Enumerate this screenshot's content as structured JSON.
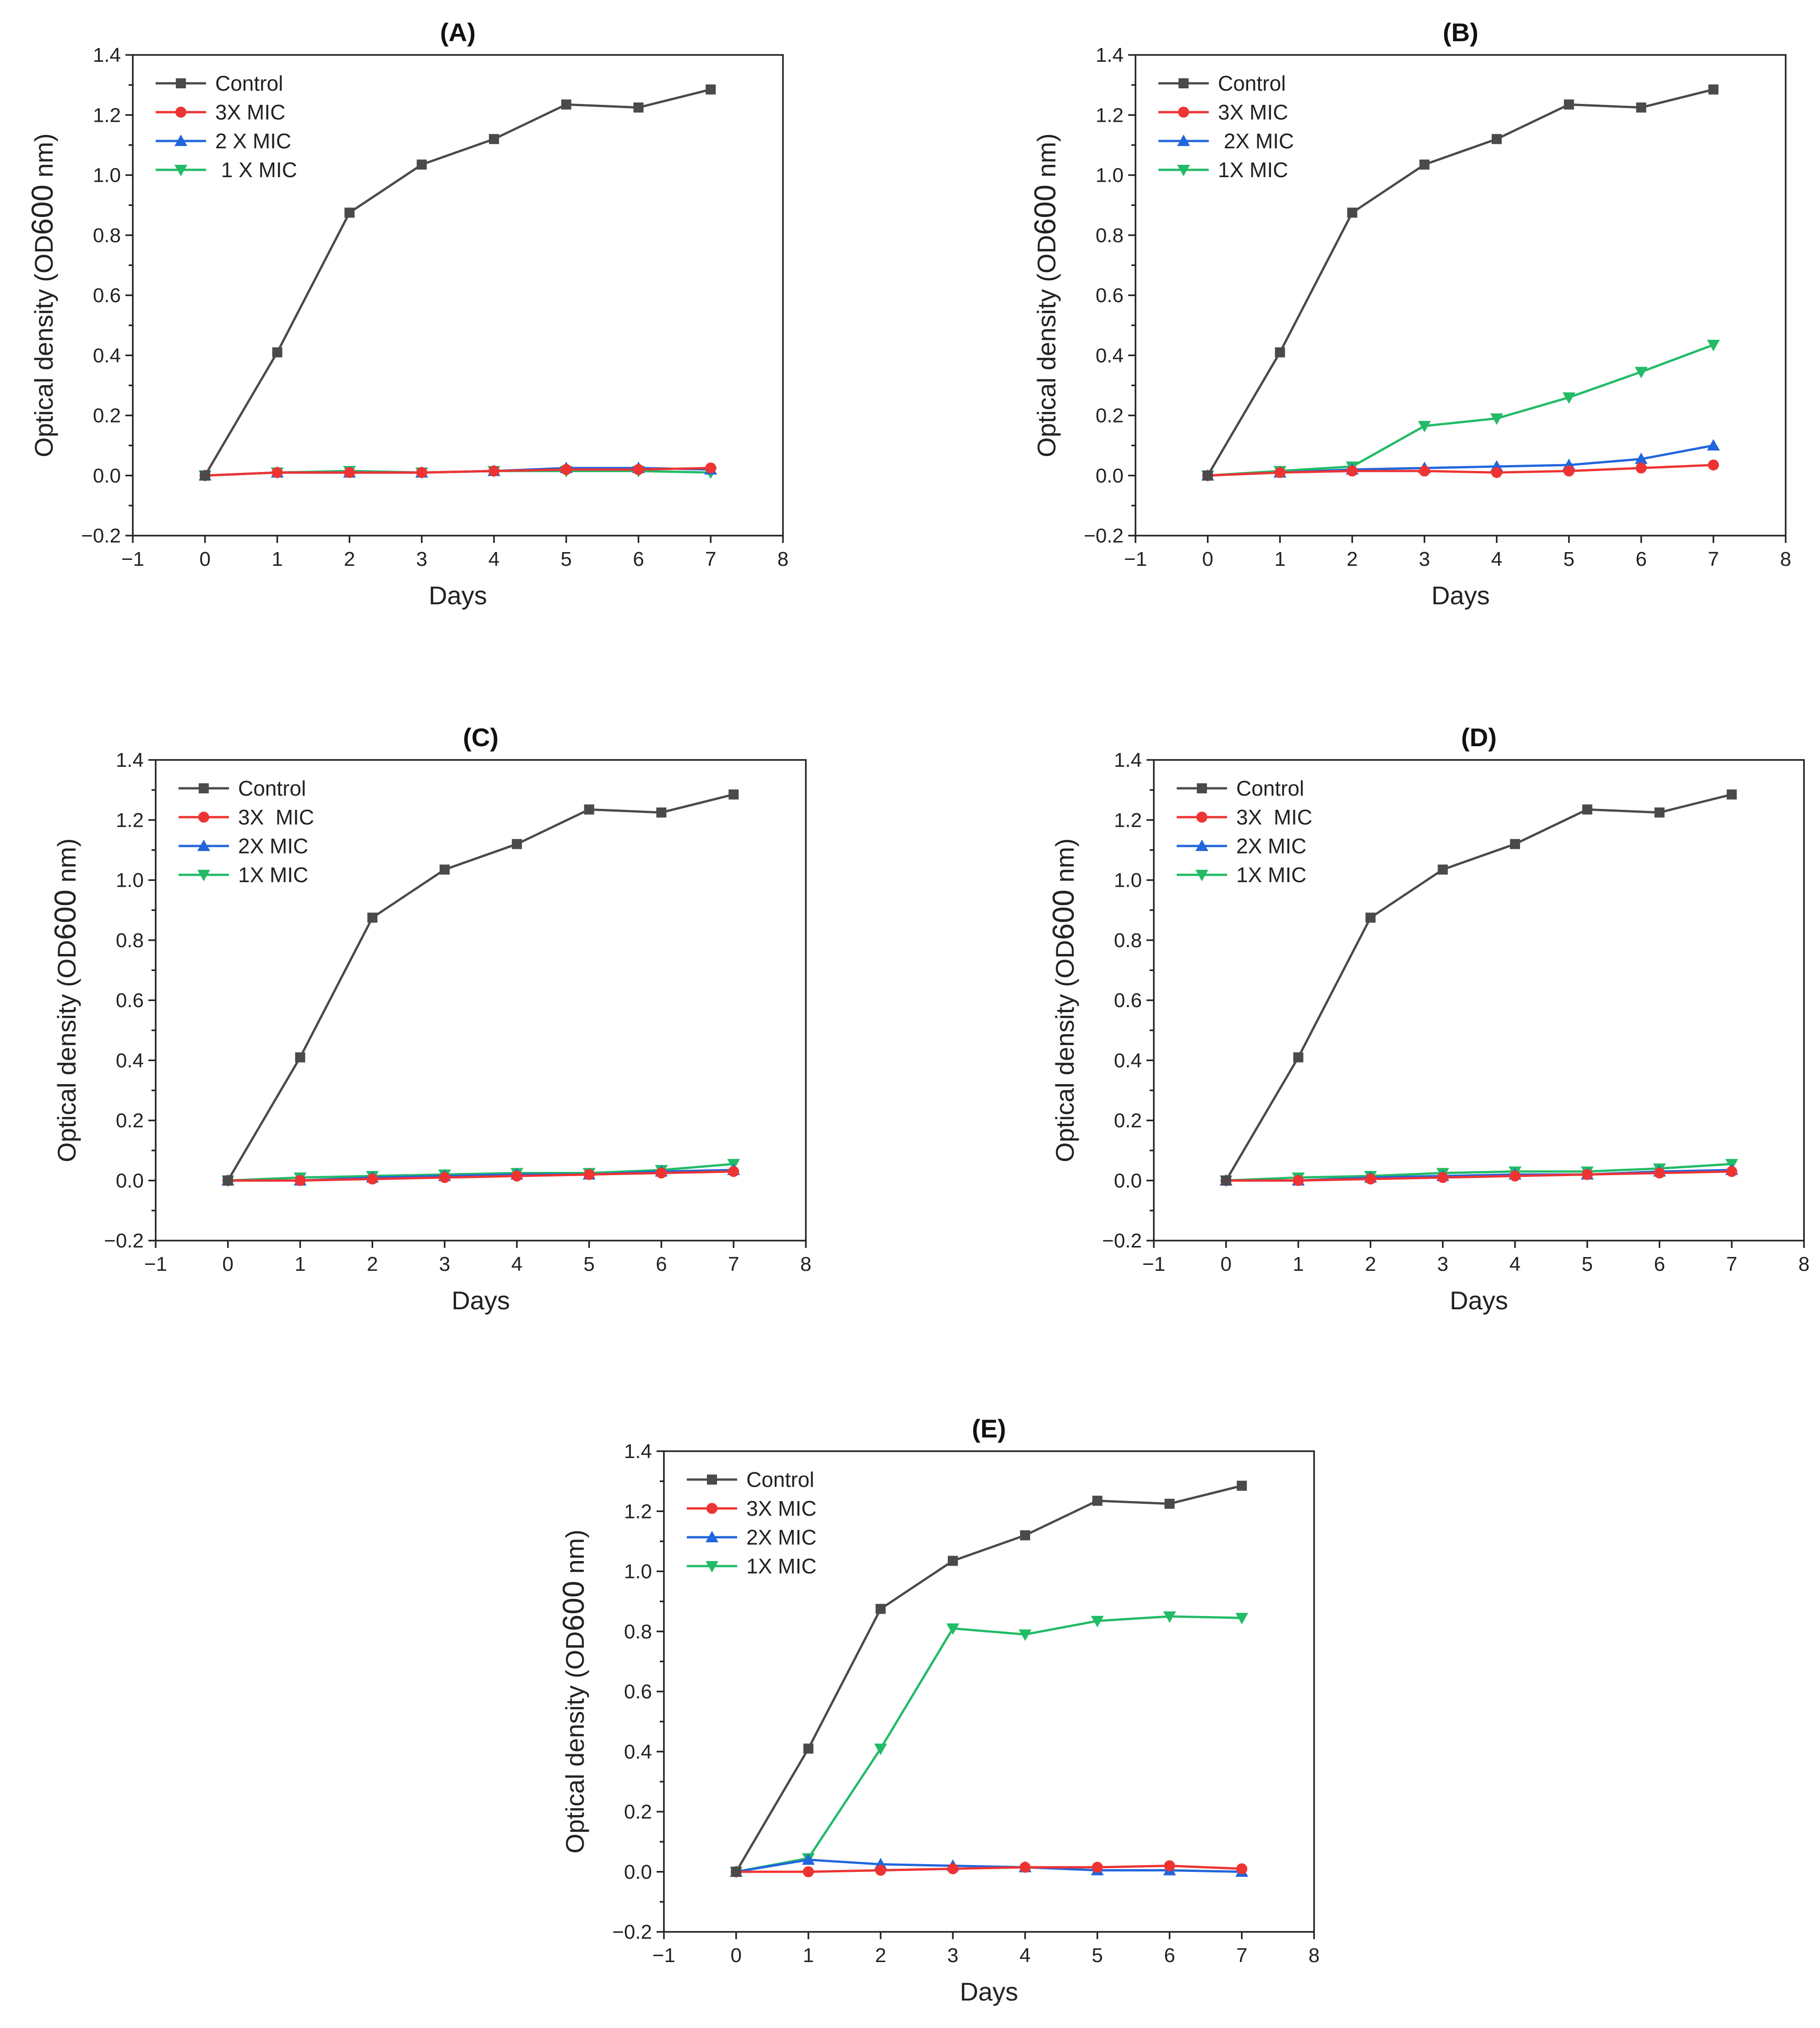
{
  "chart_data": [
    {
      "type": "line",
      "title": "(A)",
      "xlabel": "Days",
      "ylabel": {
        "main": "Optical density (OD",
        "sub": "600",
        "tail": " nm)"
      },
      "xlim": [
        -1,
        8
      ],
      "ylim": [
        -0.2,
        1.4
      ],
      "xticks": [
        "−1",
        "0",
        "1",
        "2",
        "3",
        "4",
        "5",
        "6",
        "7",
        "8"
      ],
      "yticks": [
        "−0.2",
        "0.0",
        "0.2",
        "0.4",
        "0.6",
        "0.8",
        "1.0",
        "1.2",
        "1.4"
      ],
      "legend_position": "top-left",
      "x": [
        0,
        1,
        2,
        3,
        4,
        5,
        6,
        7
      ],
      "series": [
        {
          "name": "Control",
          "color": "#4a4a4a",
          "marker": "square",
          "values": [
            0.0,
            0.41,
            0.875,
            1.035,
            1.12,
            1.235,
            1.225,
            1.285
          ]
        },
        {
          "name": "3X MIC",
          "color": "#ee3333",
          "marker": "circle",
          "values": [
            0.0,
            0.01,
            0.01,
            0.01,
            0.015,
            0.02,
            0.02,
            0.025
          ]
        },
        {
          "name": "2 X MIC",
          "color": "#2266dd",
          "marker": "triangle-up",
          "values": [
            0.0,
            0.01,
            0.01,
            0.01,
            0.015,
            0.025,
            0.025,
            0.02
          ]
        },
        {
          "name": " 1 X MIC",
          "color": "#22bb66",
          "marker": "triangle-down",
          "values": [
            0.0,
            0.01,
            0.015,
            0.01,
            0.015,
            0.015,
            0.015,
            0.01
          ]
        }
      ]
    },
    {
      "type": "line",
      "title": "(B)",
      "xlabel": "Days",
      "ylabel": {
        "main": "Optical density (OD",
        "sub": "600",
        "tail": " nm)"
      },
      "xlim": [
        -1,
        8
      ],
      "ylim": [
        -0.2,
        1.4
      ],
      "xticks": [
        "−1",
        "0",
        "1",
        "2",
        "3",
        "4",
        "5",
        "6",
        "7",
        "8"
      ],
      "yticks": [
        "−0.2",
        "0.0",
        "0.2",
        "0.4",
        "0.6",
        "0.8",
        "1.0",
        "1.2",
        "1.4"
      ],
      "legend_position": "top-left",
      "x": [
        0,
        1,
        2,
        3,
        4,
        5,
        6,
        7
      ],
      "series": [
        {
          "name": "Control",
          "color": "#4a4a4a",
          "marker": "square",
          "values": [
            0.0,
            0.41,
            0.875,
            1.035,
            1.12,
            1.235,
            1.225,
            1.285
          ]
        },
        {
          "name": "3X MIC",
          "color": "#ee3333",
          "marker": "circle",
          "values": [
            0.0,
            0.01,
            0.015,
            0.015,
            0.01,
            0.015,
            0.025,
            0.035
          ]
        },
        {
          "name": " 2X MIC",
          "color": "#2266dd",
          "marker": "triangle-up",
          "values": [
            0.0,
            0.01,
            0.02,
            0.025,
            0.03,
            0.035,
            0.055,
            0.1
          ]
        },
        {
          "name": "1X MIC",
          "color": "#22bb66",
          "marker": "triangle-down",
          "values": [
            0.0,
            0.015,
            0.03,
            0.165,
            0.19,
            0.26,
            0.345,
            0.435
          ]
        }
      ]
    },
    {
      "type": "line",
      "title": "(C)",
      "xlabel": "Days",
      "ylabel": {
        "main": "Optical density (OD",
        "sub": "600",
        "tail": " nm)"
      },
      "xlim": [
        -1,
        8
      ],
      "ylim": [
        -0.2,
        1.4
      ],
      "xticks": [
        "−1",
        "0",
        "1",
        "2",
        "3",
        "4",
        "5",
        "6",
        "7",
        "8"
      ],
      "yticks": [
        "−0.2",
        "0.0",
        "0.2",
        "0.4",
        "0.6",
        "0.8",
        "1.0",
        "1.2",
        "1.4"
      ],
      "legend_position": "top-left",
      "x": [
        0,
        1,
        2,
        3,
        4,
        5,
        6,
        7
      ],
      "series": [
        {
          "name": "Control",
          "color": "#4a4a4a",
          "marker": "square",
          "values": [
            0.0,
            0.41,
            0.875,
            1.035,
            1.12,
            1.235,
            1.225,
            1.285
          ]
        },
        {
          "name": "3X  MIC",
          "color": "#ee3333",
          "marker": "circle",
          "values": [
            0.0,
            0.0,
            0.005,
            0.01,
            0.015,
            0.02,
            0.025,
            0.03
          ]
        },
        {
          "name": "2X MIC",
          "color": "#2266dd",
          "marker": "triangle-up",
          "values": [
            0.0,
            0.0,
            0.01,
            0.015,
            0.02,
            0.02,
            0.03,
            0.035
          ]
        },
        {
          "name": "1X MIC",
          "color": "#22bb66",
          "marker": "triangle-down",
          "values": [
            0.0,
            0.01,
            0.015,
            0.02,
            0.025,
            0.025,
            0.035,
            0.055
          ]
        }
      ]
    },
    {
      "type": "line",
      "title": "(D)",
      "xlabel": "Days",
      "ylabel": {
        "main": "Optical density (OD",
        "sub": "600",
        "tail": " nm)"
      },
      "xlim": [
        -1,
        8
      ],
      "ylim": [
        -0.2,
        1.4
      ],
      "xticks": [
        "−1",
        "0",
        "1",
        "2",
        "3",
        "4",
        "5",
        "6",
        "7",
        "8"
      ],
      "yticks": [
        "−0.2",
        "0.0",
        "0.2",
        "0.4",
        "0.6",
        "0.8",
        "1.0",
        "1.2",
        "1.4"
      ],
      "legend_position": "top-left",
      "x": [
        0,
        1,
        2,
        3,
        4,
        5,
        6,
        7
      ],
      "series": [
        {
          "name": "Control",
          "color": "#4a4a4a",
          "marker": "square",
          "values": [
            0.0,
            0.41,
            0.875,
            1.035,
            1.12,
            1.235,
            1.225,
            1.285
          ]
        },
        {
          "name": "3X  MIC",
          "color": "#ee3333",
          "marker": "circle",
          "values": [
            0.0,
            0.0,
            0.005,
            0.01,
            0.015,
            0.02,
            0.025,
            0.03
          ]
        },
        {
          "name": "2X MIC",
          "color": "#2266dd",
          "marker": "triangle-up",
          "values": [
            0.0,
            0.0,
            0.01,
            0.015,
            0.02,
            0.02,
            0.03,
            0.035
          ]
        },
        {
          "name": "1X MIC",
          "color": "#22bb66",
          "marker": "triangle-down",
          "values": [
            0.0,
            0.01,
            0.015,
            0.025,
            0.03,
            0.03,
            0.04,
            0.055
          ]
        }
      ]
    },
    {
      "type": "line",
      "title": "(E)",
      "xlabel": "Days",
      "ylabel": {
        "main": "Optical density (OD",
        "sub": "600",
        "tail": " nm)"
      },
      "xlim": [
        -1,
        8
      ],
      "ylim": [
        -0.2,
        1.4
      ],
      "xticks": [
        "−1",
        "0",
        "1",
        "2",
        "3",
        "4",
        "5",
        "6",
        "7",
        "8"
      ],
      "yticks": [
        "−0.2",
        "0.0",
        "0.2",
        "0.4",
        "0.6",
        "0.8",
        "1.0",
        "1.2",
        "1.4"
      ],
      "legend_position": "top-left",
      "x": [
        0,
        1,
        2,
        3,
        4,
        5,
        6,
        7
      ],
      "series": [
        {
          "name": "Control",
          "color": "#4a4a4a",
          "marker": "square",
          "values": [
            0.0,
            0.41,
            0.875,
            1.035,
            1.12,
            1.235,
            1.225,
            1.285
          ]
        },
        {
          "name": "3X MIC",
          "color": "#ee3333",
          "marker": "circle",
          "values": [
            0.0,
            0.0,
            0.005,
            0.01,
            0.015,
            0.015,
            0.02,
            0.01
          ]
        },
        {
          "name": "2X MIC",
          "color": "#2266dd",
          "marker": "triangle-up",
          "values": [
            0.0,
            0.04,
            0.025,
            0.02,
            0.015,
            0.005,
            0.005,
            0.0
          ]
        },
        {
          "name": "1X MIC",
          "color": "#22bb66",
          "marker": "triangle-down",
          "values": [
            0.0,
            0.045,
            0.41,
            0.81,
            0.79,
            0.835,
            0.85,
            0.845
          ]
        }
      ]
    }
  ]
}
